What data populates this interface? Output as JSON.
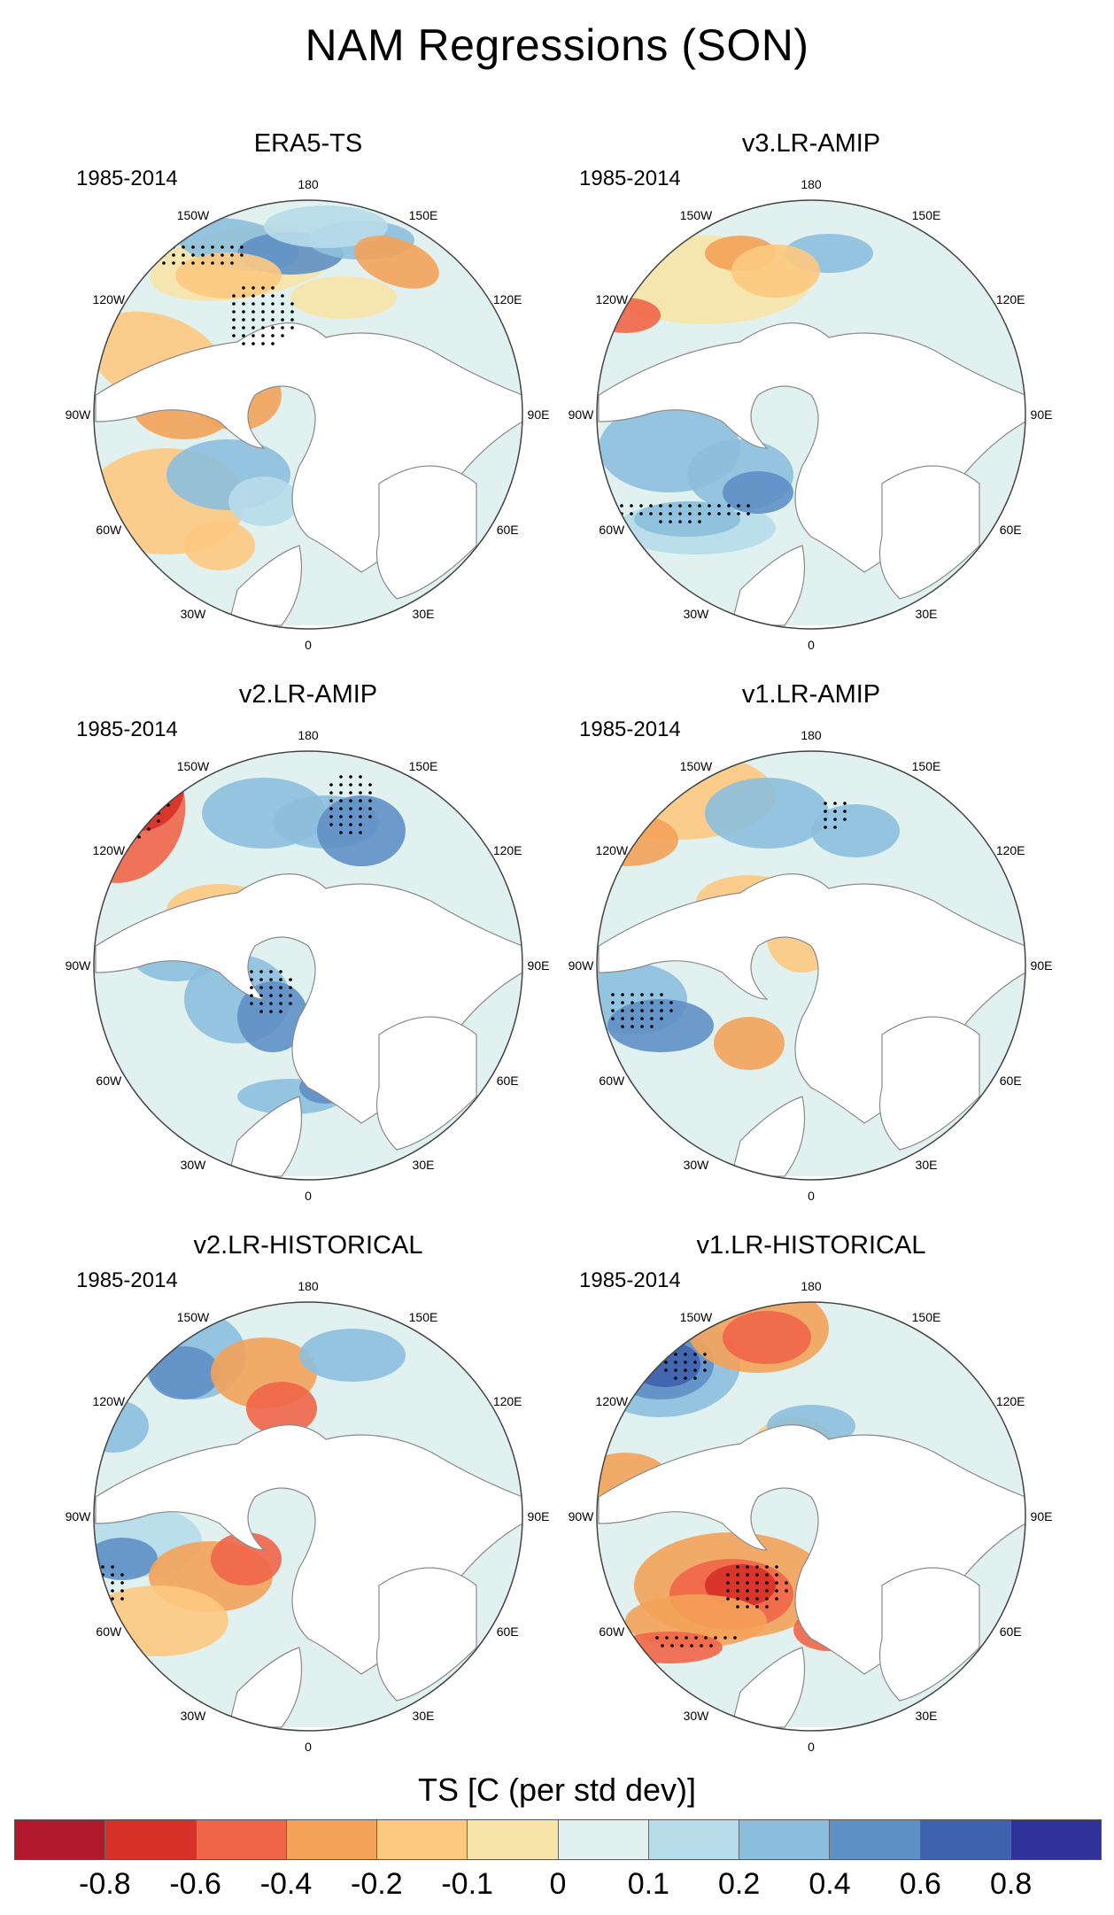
{
  "title": "NAM Regressions (SON)",
  "period_label": "1985-2014",
  "longitude_labels": [
    "180",
    "150E",
    "120E",
    "90E",
    "60E",
    "30E",
    "0",
    "30W",
    "60W",
    "90W",
    "120W",
    "150W"
  ],
  "panels": [
    {
      "title": "ERA5-TS",
      "period": "1985-2014"
    },
    {
      "title": "v3.LR-AMIP",
      "period": "1985-2014"
    },
    {
      "title": "v2.LR-AMIP",
      "period": "1985-2014"
    },
    {
      "title": "v1.LR-AMIP",
      "period": "1985-2014"
    },
    {
      "title": "v2.LR-HISTORICAL",
      "period": "1985-2014"
    },
    {
      "title": "v1.LR-HISTORICAL",
      "period": "1985-2014"
    }
  ],
  "colorbar": {
    "title": "TS [C (per std dev)]",
    "tick_labels": [
      "-0.8",
      "-0.6",
      "-0.4",
      "-0.2",
      "-0.1",
      "0",
      "0.1",
      "0.2",
      "0.4",
      "0.6",
      "0.8"
    ],
    "colors": [
      "#b2182b",
      "#d73027",
      "#ef6548",
      "#f4a259",
      "#fdc981",
      "#f7e4a8",
      "#e0f1ef",
      "#b7dcea",
      "#8cbfdd",
      "#5f90c5",
      "#3e62ad",
      "#30329a"
    ]
  },
  "chart_data": {
    "type": "heatmap",
    "title": "NAM Regressions (SON)",
    "projection": "north-polar-stereographic",
    "variable": "TS [C (per std dev)]",
    "period": "1985-2014",
    "panels": [
      "ERA5-TS",
      "v3.LR-AMIP",
      "v2.LR-AMIP",
      "v1.LR-AMIP",
      "v2.LR-HISTORICAL",
      "v1.LR-HISTORICAL"
    ],
    "contour_levels": [
      -0.8,
      -0.6,
      -0.4,
      -0.2,
      -0.1,
      0,
      0.1,
      0.2,
      0.4,
      0.6,
      0.8
    ]
  }
}
